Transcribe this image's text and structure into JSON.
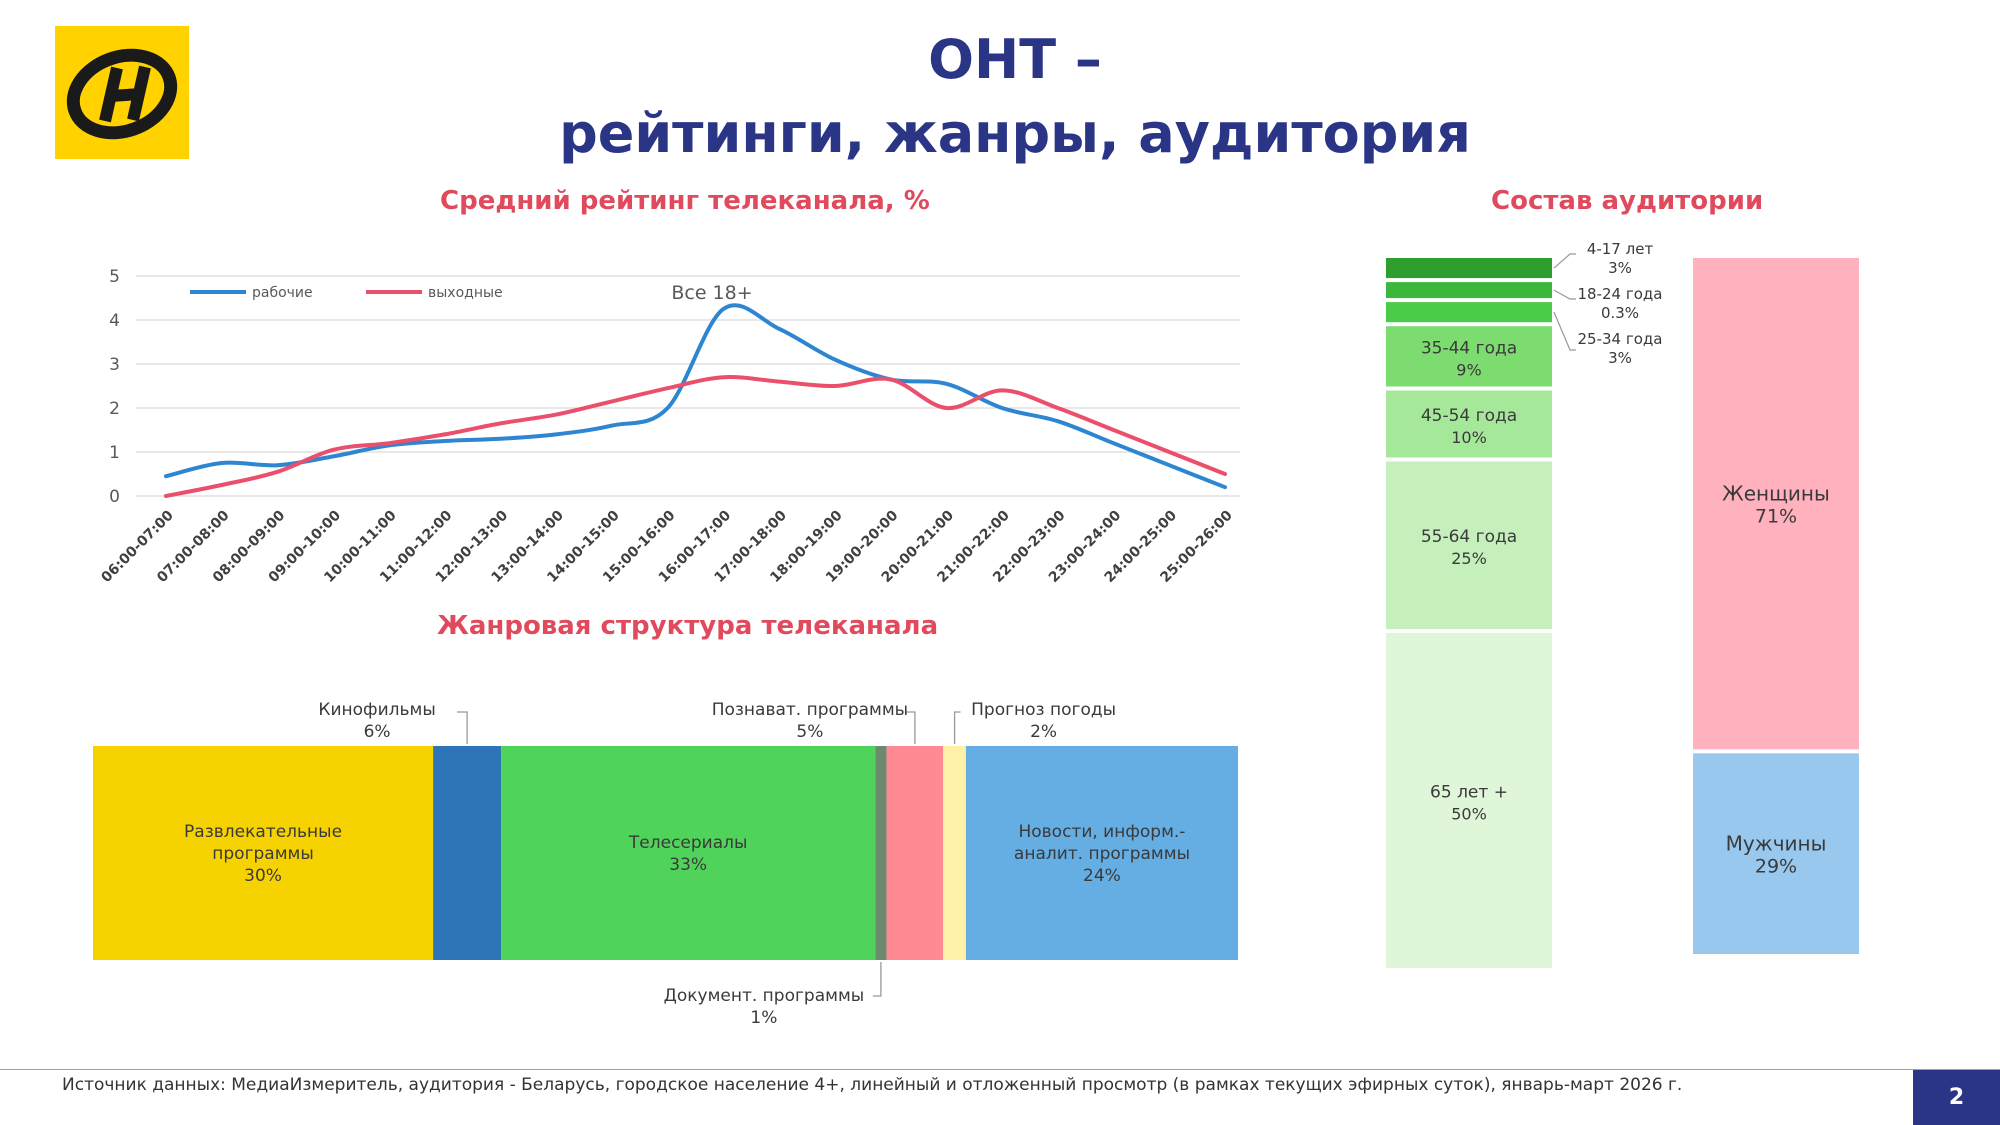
{
  "title_line1": "ОНТ –",
  "title_line2": "рейтинги, жанры, аудитория",
  "colors": {
    "title": "#2B3586",
    "section_title": "#E04A5C",
    "logo_bg": "#FFD200",
    "workdays": "#2E86D1",
    "weekends": "#EA4F6B"
  },
  "logo_icon": "ont-logo-icon",
  "chart_data": [
    {
      "type": "line",
      "title": "Средний рейтинг телеканала, %",
      "annotation": "Все 18+",
      "categories": [
        "06:00-07:00",
        "07:00-08:00",
        "08:00-09:00",
        "09:00-10:00",
        "10:00-11:00",
        "11:00-12:00",
        "12:00-13:00",
        "13:00-14:00",
        "14:00-15:00",
        "15:00-16:00",
        "16:00-17:00",
        "17:00-18:00",
        "18:00-19:00",
        "19:00-20:00",
        "20:00-21:00",
        "21:00-22:00",
        "22:00-23:00",
        "23:00-24:00",
        "24:00-25:00",
        "25:00-26:00"
      ],
      "yticks": [
        "0",
        "1",
        "2",
        "3",
        "4",
        "5"
      ],
      "ylim": [
        0,
        5
      ],
      "grid": true,
      "legend_position": "top-left",
      "series": [
        {
          "name": "рабочие",
          "color": "#2E86D1",
          "values": [
            0.45,
            0.75,
            0.7,
            0.9,
            1.15,
            1.25,
            1.3,
            1.4,
            1.6,
            2.0,
            4.25,
            3.8,
            3.1,
            2.65,
            2.55,
            2.0,
            1.7,
            1.2,
            0.7,
            0.2
          ]
        },
        {
          "name": "выходные",
          "color": "#EA4F6B",
          "values": [
            0.0,
            0.25,
            0.55,
            1.05,
            1.2,
            1.4,
            1.65,
            1.85,
            2.15,
            2.45,
            2.7,
            2.6,
            2.5,
            2.65,
            2.0,
            2.4,
            2.0,
            1.5,
            1.0,
            0.5
          ]
        }
      ]
    },
    {
      "type": "bar",
      "stacked": true,
      "orientation": "horizontal",
      "title": "Жанровая структура телеканала",
      "segments": [
        {
          "label": "Развлекательные программы",
          "lines": [
            "Развлекательные",
            "программы"
          ],
          "value": 30,
          "value_label": "30%",
          "color": "#F5D200",
          "label_position": "inside"
        },
        {
          "label": "Кинофильмы",
          "lines": [
            "Кинофильмы"
          ],
          "value": 6,
          "value_label": "6%",
          "color": "#2E74B8",
          "label_position": "above"
        },
        {
          "label": "Телесериалы",
          "lines": [
            "Телесериалы"
          ],
          "value": 33,
          "value_label": "33%",
          "color": "#50D35A",
          "label_position": "inside"
        },
        {
          "label": "Документ. программы",
          "lines": [
            "Документ. программы"
          ],
          "value": 1,
          "value_label": "1%",
          "color": "#6E8A6E",
          "label_position": "below"
        },
        {
          "label": "Познават. программы",
          "lines": [
            "Познават. программы"
          ],
          "value": 5,
          "value_label": "5%",
          "color": "#FF8A94",
          "label_position": "above"
        },
        {
          "label": "Прогноз погоды",
          "lines": [
            "Прогноз погоды"
          ],
          "value": 2,
          "value_label": "2%",
          "color": "#FFF2A8",
          "label_position": "above"
        },
        {
          "label": "Новости, информ.-аналит. программы",
          "lines": [
            "Новости, информ.-",
            "аналит. программы"
          ],
          "value": 24,
          "value_label": "24%",
          "color": "#65AEE3",
          "label_position": "inside"
        }
      ]
    },
    {
      "type": "bar",
      "stacked": true,
      "orientation": "vertical",
      "title": "Состав аудитории",
      "series": [
        {
          "name": "Возраст",
          "segments": [
            {
              "label": "4-17 лет",
              "value": 3,
              "value_label": "3%",
              "color": "#2E9E2E",
              "label_position": "outside"
            },
            {
              "label": "18-24 года",
              "value": 0.3,
              "value_label": "0.3%",
              "color": "#3BB83B",
              "label_position": "outside"
            },
            {
              "label": "25-34 года",
              "value": 3,
              "value_label": "3%",
              "color": "#4CCB48",
              "label_position": "outside"
            },
            {
              "label": "35-44 года",
              "value": 9,
              "value_label": "9%",
              "color": "#7DDC70",
              "label_position": "inside"
            },
            {
              "label": "45-54 года",
              "value": 10,
              "value_label": "10%",
              "color": "#A6E89A",
              "label_position": "inside"
            },
            {
              "label": "55-64 года",
              "value": 25,
              "value_label": "25%",
              "color": "#C5F0BC",
              "label_position": "inside"
            },
            {
              "label": "65 лет +",
              "value": 50,
              "value_label": "50%",
              "color": "#DFF6D9",
              "label_position": "inside"
            }
          ]
        },
        {
          "name": "Пол",
          "segments": [
            {
              "label": "Женщины",
              "value": 71,
              "value_label": "71%",
              "color": "#FFB1BE",
              "label_position": "inside"
            },
            {
              "label": "Мужчины",
              "value": 29,
              "value_label": "29%",
              "color": "#98C8EE",
              "label_position": "inside"
            }
          ]
        }
      ]
    }
  ],
  "footer": {
    "source": "Источник данных: МедиаИзмеритель, аудитория - Беларусь, городское население 4+, линейный и отложенный просмотр (в рамках текущих эфирных суток), январь-март 2026 г.",
    "page_number": "2"
  }
}
